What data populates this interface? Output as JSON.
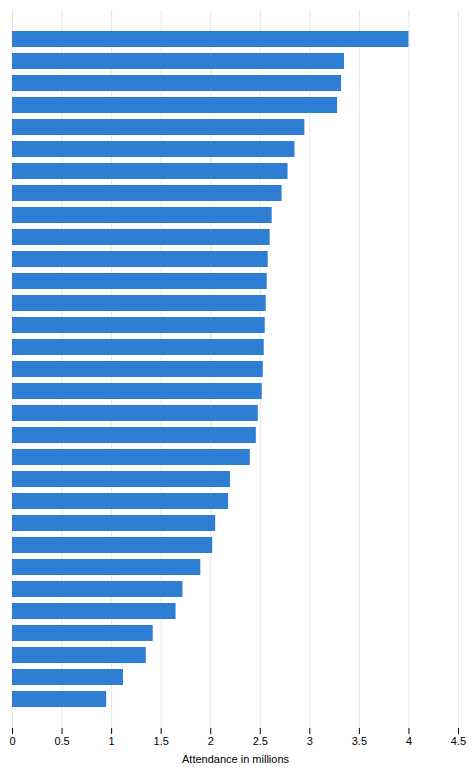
{
  "chart_data": {
    "type": "bar",
    "orientation": "horizontal",
    "xlabel": "Attendance in millions",
    "categories": [
      null,
      null,
      null,
      null,
      null,
      null,
      null,
      null,
      null,
      null,
      null,
      null,
      null,
      null,
      null,
      null,
      null,
      null,
      null,
      null,
      null,
      null,
      null,
      null,
      null,
      null,
      null,
      null,
      null,
      null,
      null
    ],
    "values": [
      4.0,
      3.35,
      3.32,
      3.28,
      2.95,
      2.85,
      2.78,
      2.72,
      2.62,
      2.6,
      2.58,
      2.57,
      2.56,
      2.55,
      2.54,
      2.53,
      2.52,
      2.48,
      2.46,
      2.4,
      2.2,
      2.18,
      2.05,
      2.02,
      1.9,
      1.72,
      1.65,
      1.42,
      1.35,
      1.12,
      0.95
    ],
    "color": "#2e7fd4",
    "xlim": [
      0,
      4.5
    ],
    "xticks": [
      0,
      0.5,
      1,
      1.5,
      2,
      2.5,
      3,
      3.5,
      4,
      4.5
    ],
    "grid": true,
    "tick_labels": "x"
  }
}
